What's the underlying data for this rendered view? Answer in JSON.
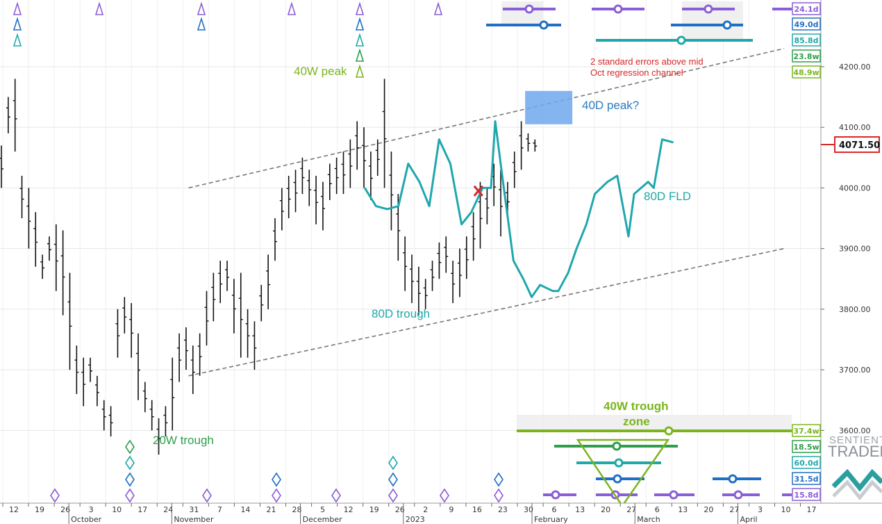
{
  "chart_data": {
    "type": "ohlc",
    "ylim": [
      3480,
      4310
    ],
    "grid": true,
    "y_ticks": [
      "4200.00",
      "4100.00",
      "4000.00",
      "3900.00",
      "3800.00",
      "3700.00",
      "3600.00"
    ],
    "y_tick_values": [
      4200,
      4100,
      4000,
      3900,
      3800,
      3700,
      3600
    ],
    "last_price": "4071.50",
    "last_price_value": 4071.5,
    "day_ticks": [
      "12",
      "19",
      "26",
      "3",
      "10",
      "17",
      "24",
      "31",
      "7",
      "14",
      "21",
      "28",
      "5",
      "12",
      "19",
      "26",
      "2",
      "9",
      "16",
      "23",
      "30",
      "6",
      "13",
      "20",
      "27",
      "6",
      "13",
      "20",
      "27",
      "3",
      "10",
      "17"
    ],
    "month_labels": [
      "October",
      "November",
      "December",
      "2023",
      "February",
      "March",
      "April"
    ],
    "bars": [
      [
        4070,
        4000
      ],
      [
        4150,
        4090
      ],
      [
        4180,
        4060
      ],
      [
        4020,
        3950
      ],
      [
        4000,
        3900
      ],
      [
        3960,
        3870
      ],
      [
        3890,
        3850
      ],
      [
        3920,
        3880
      ],
      [
        3940,
        3830
      ],
      [
        3930,
        3790
      ],
      [
        3860,
        3700
      ],
      [
        3740,
        3660
      ],
      [
        3720,
        3640
      ],
      [
        3720,
        3680
      ],
      [
        3690,
        3640
      ],
      [
        3650,
        3600
      ],
      [
        3640,
        3590
      ],
      [
        3800,
        3720
      ],
      [
        3820,
        3760
      ],
      [
        3810,
        3720
      ],
      [
        3760,
        3650
      ],
      [
        3680,
        3630
      ],
      [
        3650,
        3600
      ],
      [
        3620,
        3560
      ],
      [
        3640,
        3590
      ],
      [
        3720,
        3600
      ],
      [
        3760,
        3680
      ],
      [
        3770,
        3700
      ],
      [
        3740,
        3660
      ],
      [
        3760,
        3690
      ],
      [
        3830,
        3740
      ],
      [
        3860,
        3780
      ],
      [
        3880,
        3810
      ],
      [
        3880,
        3830
      ],
      [
        3850,
        3760
      ],
      [
        3860,
        3720
      ],
      [
        3800,
        3720
      ],
      [
        3780,
        3700
      ],
      [
        3840,
        3780
      ],
      [
        3890,
        3800
      ],
      [
        3950,
        3880
      ],
      [
        4000,
        3930
      ],
      [
        4020,
        3950
      ],
      [
        4030,
        3960
      ],
      [
        4050,
        3990
      ],
      [
        4030,
        3970
      ],
      [
        4020,
        3940
      ],
      [
        4010,
        3930
      ],
      [
        4040,
        3980
      ],
      [
        4050,
        3990
      ],
      [
        4060,
        3990
      ],
      [
        4080,
        4000
      ],
      [
        4110,
        4030
      ],
      [
        4100,
        4000
      ],
      [
        4060,
        3980
      ],
      [
        4080,
        4020
      ],
      [
        4180,
        4000
      ],
      [
        4060,
        3930
      ],
      [
        3990,
        3880
      ],
      [
        3920,
        3830
      ],
      [
        3890,
        3810
      ],
      [
        3870,
        3790
      ],
      [
        3850,
        3800
      ],
      [
        3880,
        3830
      ],
      [
        3910,
        3850
      ],
      [
        3920,
        3860
      ],
      [
        3880,
        3810
      ],
      [
        3900,
        3820
      ],
      [
        3920,
        3850
      ],
      [
        3960,
        3880
      ],
      [
        4010,
        3900
      ],
      [
        4000,
        3940
      ],
      [
        4040,
        3970
      ],
      [
        4030,
        3920
      ],
      [
        4010,
        3950
      ],
      [
        4060,
        4000
      ],
      [
        4110,
        4030
      ],
      [
        4090,
        4060
      ],
      [
        4080,
        4060
      ]
    ],
    "channel_upper": [
      [
        110,
        4000
      ],
      [
        460,
        4230
      ]
    ],
    "channel_lower": [
      [
        110,
        3690
      ],
      [
        460,
        3900
      ]
    ],
    "fld_label": "80D FLD",
    "fld": [
      [
        260,
        4000
      ],
      [
        268,
        3970
      ],
      [
        276,
        3965
      ],
      [
        284,
        3970
      ],
      [
        291,
        4040
      ],
      [
        299,
        4010
      ],
      [
        306,
        3970
      ],
      [
        313,
        4080
      ],
      [
        321,
        4040
      ],
      [
        329,
        3940
      ],
      [
        336,
        3960
      ],
      [
        344,
        4000
      ],
      [
        350,
        4000
      ],
      [
        353,
        4110
      ],
      [
        358,
        4020
      ],
      [
        366,
        3880
      ],
      [
        373,
        3850
      ],
      [
        379,
        3820
      ],
      [
        385,
        3840
      ],
      [
        394,
        3830
      ],
      [
        398,
        3830
      ],
      [
        405,
        3860
      ],
      [
        411,
        3900
      ],
      [
        418,
        3940
      ],
      [
        424,
        3990
      ],
      [
        433,
        4010
      ],
      [
        440,
        4020
      ],
      [
        448,
        3920
      ],
      [
        452,
        3990
      ],
      [
        462,
        4010
      ],
      [
        466,
        4000
      ],
      [
        472,
        4080
      ],
      [
        480,
        4075
      ]
    ],
    "cross_point": [
      341,
      3995
    ],
    "peak_box": [
      378,
      4160,
      412,
      4105
    ],
    "annotations": [
      {
        "text": "40W peak",
        "color": "#7ab51d"
      },
      {
        "text": "40D peak?",
        "color": "#2b79c2"
      },
      {
        "text": "80D trough",
        "color": "#20a8a8"
      },
      {
        "text": "20W trough",
        "color": "#2e9e4a"
      },
      {
        "text": "2 standard errors above mid",
        "color": "#d82626"
      },
      {
        "text": "Oct regression channel",
        "color": "#d82626"
      },
      {
        "text": "40W trough",
        "color": "#7ab51d"
      },
      {
        "text": "zone",
        "color": "#7ab51d"
      }
    ],
    "cycle_badges_top": [
      {
        "text": "24.1d",
        "color": "#8a5ed6"
      },
      {
        "text": "49.0d",
        "color": "#1f6fc4"
      },
      {
        "text": "85.8d",
        "color": "#20a8a8"
      },
      {
        "text": "23.8w",
        "color": "#2e9e4a"
      },
      {
        "text": "48.9w",
        "color": "#7ab51d"
      }
    ],
    "cycle_badges_bottom": [
      {
        "text": "37.4w",
        "color": "#7ab51d"
      },
      {
        "text": "18.5w",
        "color": "#2e9e4a"
      },
      {
        "text": "60.0d",
        "color": "#20a8a8"
      },
      {
        "text": "31.5d",
        "color": "#1f6fc4"
      },
      {
        "text": "15.8d",
        "color": "#8a5ed6"
      }
    ]
  },
  "colors": {
    "purple": "#8a5ed6",
    "blue": "#1f6fc4",
    "teal": "#20a8a8",
    "green": "#2e9e4a",
    "lime": "#7ab51d",
    "red": "#d82626",
    "fld": "#1ea7ad",
    "bars": "#111111"
  },
  "watermark": {
    "line1": "SENTIENT",
    "line2": "TRADER"
  }
}
